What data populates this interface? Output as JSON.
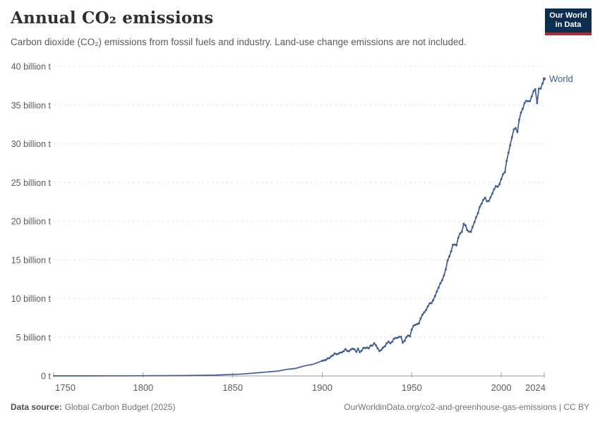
{
  "header": {
    "title": "Annual CO₂ emissions",
    "subtitle": "Carbon dioxide (CO₂) emissions from fossil fuels and industry. Land-use change emissions are not included."
  },
  "logo": {
    "line1": "Our World",
    "line2": "in Data",
    "bg_color": "#0d2e4e",
    "accent_color": "#a82f2e"
  },
  "footer": {
    "source_label": "Data source:",
    "source_text": "Global Carbon Budget (2025)",
    "credit_text": "OurWorldinData.org/co2-and-greenhouse-gas-emissions | CC BY"
  },
  "chart_data": {
    "type": "line",
    "title": "Annual CO₂ emissions",
    "xlabel": "",
    "ylabel": "",
    "xlim": [
      1750,
      2024
    ],
    "ylim": [
      0,
      40
    ],
    "x_ticks": [
      1750,
      1800,
      1850,
      1900,
      1950,
      2000,
      2024
    ],
    "y_ticks": [
      0,
      5,
      10,
      15,
      20,
      25,
      30,
      35,
      40
    ],
    "y_tick_suffix": " billion t",
    "y_zero_label": "0 t",
    "grid": "horizontal-dashed",
    "legend_position": "end-of-line",
    "grid_color": "#dcdcdc",
    "axis_color": "#9a9a9a",
    "series": [
      {
        "name": "World",
        "color": "#3d5c94",
        "points": [
          [
            1750,
            0.01
          ],
          [
            1760,
            0.01
          ],
          [
            1770,
            0.01
          ],
          [
            1780,
            0.02
          ],
          [
            1790,
            0.02
          ],
          [
            1800,
            0.03
          ],
          [
            1810,
            0.04
          ],
          [
            1820,
            0.05
          ],
          [
            1830,
            0.07
          ],
          [
            1840,
            0.1
          ],
          [
            1850,
            0.2
          ],
          [
            1855,
            0.25
          ],
          [
            1860,
            0.34
          ],
          [
            1865,
            0.43
          ],
          [
            1870,
            0.53
          ],
          [
            1875,
            0.62
          ],
          [
            1880,
            0.84
          ],
          [
            1885,
            0.97
          ],
          [
            1890,
            1.3
          ],
          [
            1895,
            1.52
          ],
          [
            1900,
            1.95
          ],
          [
            1901,
            2.02
          ],
          [
            1902,
            2.06
          ],
          [
            1903,
            2.26
          ],
          [
            1904,
            2.3
          ],
          [
            1905,
            2.54
          ],
          [
            1906,
            2.66
          ],
          [
            1907,
            2.91
          ],
          [
            1908,
            2.8
          ],
          [
            1909,
            2.88
          ],
          [
            1910,
            3.0
          ],
          [
            1911,
            3.06
          ],
          [
            1912,
            3.21
          ],
          [
            1913,
            3.46
          ],
          [
            1914,
            3.23
          ],
          [
            1915,
            3.2
          ],
          [
            1916,
            3.42
          ],
          [
            1917,
            3.52
          ],
          [
            1918,
            3.45
          ],
          [
            1919,
            3.11
          ],
          [
            1920,
            3.52
          ],
          [
            1921,
            3.09
          ],
          [
            1922,
            3.26
          ],
          [
            1923,
            3.62
          ],
          [
            1924,
            3.61
          ],
          [
            1925,
            3.66
          ],
          [
            1926,
            3.57
          ],
          [
            1927,
            3.93
          ],
          [
            1928,
            3.93
          ],
          [
            1929,
            4.22
          ],
          [
            1930,
            3.94
          ],
          [
            1931,
            3.56
          ],
          [
            1932,
            3.22
          ],
          [
            1933,
            3.38
          ],
          [
            1934,
            3.67
          ],
          [
            1935,
            3.84
          ],
          [
            1936,
            4.21
          ],
          [
            1937,
            4.43
          ],
          [
            1938,
            4.23
          ],
          [
            1939,
            4.4
          ],
          [
            1940,
            4.79
          ],
          [
            1941,
            4.92
          ],
          [
            1942,
            4.92
          ],
          [
            1943,
            5.06
          ],
          [
            1944,
            5.04
          ],
          [
            1945,
            4.3
          ],
          [
            1946,
            4.55
          ],
          [
            1947,
            5.01
          ],
          [
            1948,
            5.23
          ],
          [
            1949,
            5.12
          ],
          [
            1950,
            5.99
          ],
          [
            1951,
            6.48
          ],
          [
            1952,
            6.6
          ],
          [
            1953,
            6.7
          ],
          [
            1954,
            6.78
          ],
          [
            1955,
            7.44
          ],
          [
            1956,
            7.92
          ],
          [
            1957,
            8.23
          ],
          [
            1958,
            8.52
          ],
          [
            1959,
            8.99
          ],
          [
            1960,
            9.39
          ],
          [
            1961,
            9.41
          ],
          [
            1962,
            9.78
          ],
          [
            1963,
            10.33
          ],
          [
            1964,
            10.91
          ],
          [
            1965,
            11.41
          ],
          [
            1966,
            11.99
          ],
          [
            1967,
            12.37
          ],
          [
            1968,
            13.0
          ],
          [
            1969,
            13.78
          ],
          [
            1970,
            14.9
          ],
          [
            1971,
            15.46
          ],
          [
            1972,
            16.09
          ],
          [
            1973,
            16.95
          ],
          [
            1974,
            16.98
          ],
          [
            1975,
            16.89
          ],
          [
            1976,
            17.87
          ],
          [
            1977,
            18.4
          ],
          [
            1978,
            18.62
          ],
          [
            1979,
            19.66
          ],
          [
            1980,
            19.46
          ],
          [
            1981,
            18.84
          ],
          [
            1982,
            18.66
          ],
          [
            1983,
            18.62
          ],
          [
            1984,
            19.26
          ],
          [
            1985,
            19.86
          ],
          [
            1986,
            20.51
          ],
          [
            1987,
            21.04
          ],
          [
            1988,
            21.85
          ],
          [
            1989,
            22.26
          ],
          [
            1990,
            22.76
          ],
          [
            1991,
            23.04
          ],
          [
            1992,
            22.58
          ],
          [
            1993,
            22.61
          ],
          [
            1994,
            23.07
          ],
          [
            1995,
            23.56
          ],
          [
            1996,
            24.13
          ],
          [
            1997,
            24.52
          ],
          [
            1998,
            24.46
          ],
          [
            1999,
            24.77
          ],
          [
            2000,
            25.45
          ],
          [
            2001,
            26.08
          ],
          [
            2002,
            26.34
          ],
          [
            2003,
            27.77
          ],
          [
            2004,
            28.84
          ],
          [
            2005,
            29.82
          ],
          [
            2006,
            30.85
          ],
          [
            2007,
            31.85
          ],
          [
            2008,
            32.03
          ],
          [
            2009,
            31.52
          ],
          [
            2010,
            33.07
          ],
          [
            2011,
            34.03
          ],
          [
            2012,
            34.52
          ],
          [
            2013,
            35.28
          ],
          [
            2014,
            35.54
          ],
          [
            2015,
            35.5
          ],
          [
            2016,
            35.52
          ],
          [
            2017,
            36.1
          ],
          [
            2018,
            36.79
          ],
          [
            2019,
            37.04
          ],
          [
            2020,
            35.26
          ],
          [
            2021,
            37.12
          ],
          [
            2022,
            37.15
          ],
          [
            2023,
            37.79
          ],
          [
            2024,
            38.4
          ]
        ]
      }
    ]
  }
}
